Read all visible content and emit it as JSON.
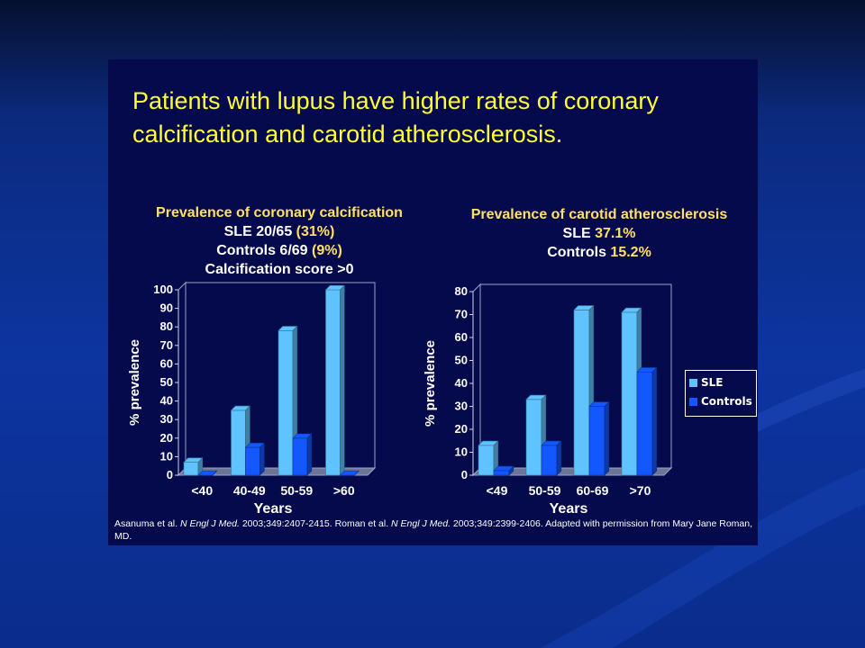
{
  "slide": {
    "title": "Patients with lupus have higher rates of coronary calcification and carotid atherosclerosis.",
    "citation": {
      "a1": "Asanuma et al. ",
      "j1": "N Engl J Med.",
      "a2": " 2003;349:2407-2415. Roman et al. ",
      "j2": "N Engl J Med.",
      "a3": " 2003;349:2399-2406. Adapted with permission from Mary Jane Roman, MD."
    }
  },
  "captions": {
    "left": {
      "heading": "Prevalence of coronary calcification",
      "line2_a": "SLE 20/65 ",
      "line2_b": "(31%)",
      "line3_a": "Controls 6/69 ",
      "line3_b": "(9%)",
      "line4": "Calcification score >0"
    },
    "right": {
      "heading": "Prevalence of carotid atherosclerosis",
      "line2_a": "SLE ",
      "line2_b": "37.1%",
      "line3_a": "Controls ",
      "line3_b": "15.2%"
    }
  },
  "legend": {
    "sle": "SLE",
    "controls": "Controls"
  },
  "colors": {
    "sle": "#5fc3ff",
    "controls": "#1257ff",
    "background": "#050a4c"
  },
  "chart_data": [
    {
      "type": "bar",
      "categories": [
        "<40",
        "40-49",
        "50-59",
        ">60"
      ],
      "series": [
        {
          "name": "SLE",
          "values": [
            7,
            35,
            78,
            100
          ]
        },
        {
          "name": "Controls",
          "values": [
            0,
            15,
            20,
            0
          ]
        }
      ],
      "xlabel": "Years",
      "ylabel": "% prevalence",
      "ylim": [
        0,
        100
      ],
      "yticks": [
        0,
        10,
        20,
        30,
        40,
        50,
        60,
        70,
        80,
        90,
        100
      ],
      "grid": false
    },
    {
      "type": "bar",
      "categories": [
        "<49",
        "50-59",
        "60-69",
        ">70"
      ],
      "series": [
        {
          "name": "SLE",
          "values": [
            13,
            33,
            72,
            71
          ]
        },
        {
          "name": "Controls",
          "values": [
            2,
            13,
            30,
            45
          ]
        }
      ],
      "xlabel": "Years",
      "ylabel": "% prevalence",
      "ylim": [
        0,
        80
      ],
      "yticks": [
        0,
        10,
        20,
        30,
        40,
        50,
        60,
        70,
        80
      ],
      "grid": false,
      "legend": "right"
    }
  ]
}
